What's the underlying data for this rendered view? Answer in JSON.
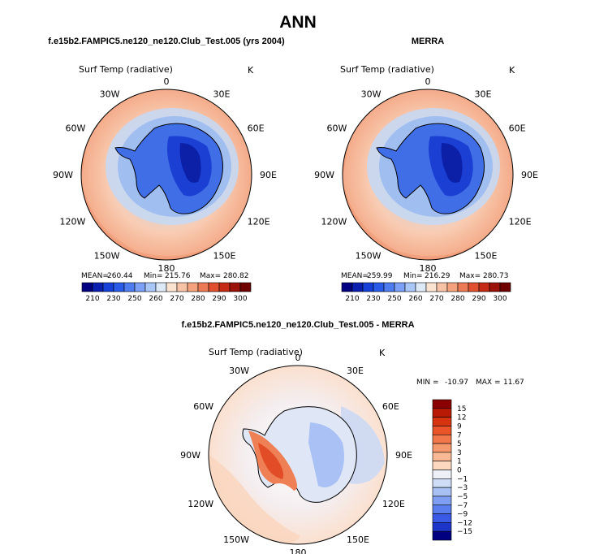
{
  "page_title": "ANN",
  "bottom_title": "f.e15b2.FAMPIC5.ne120_ne120.Club_Test.005 - MERRA",
  "chart_data": [
    {
      "id": "model",
      "type": "heatmap",
      "projection": "south-polar-stereographic",
      "title": "f.e15b2.FAMPIC5.ne120_ne120.Club_Test.005 (yrs 2004)",
      "variable": "Surf Temp (radiative)",
      "units": "K",
      "stats": {
        "mean_label": "MEAN=",
        "mean": "260.44",
        "min_label": "Min=",
        "min": "215.76",
        "max_label": "Max=",
        "max": "280.82"
      },
      "lon_labels": [
        "0",
        "30E",
        "60E",
        "90E",
        "120E",
        "150E",
        "180",
        "150W",
        "120W",
        "90W",
        "60W",
        "30W"
      ],
      "colorbar_levels": [
        "210",
        "230",
        "250",
        "260",
        "270",
        "280",
        "290",
        "300"
      ],
      "colorbar_colors": [
        "#000080",
        "#0a1fb0",
        "#1740d9",
        "#2a5ae8",
        "#4e7cf0",
        "#7ba0f5",
        "#a9c6f8",
        "#dde9f6",
        "#fbe3d2",
        "#f7c2a6",
        "#f3a27d",
        "#ec7a55",
        "#e0502f",
        "#c42a14",
        "#9c120a",
        "#6e0000"
      ]
    },
    {
      "id": "obs",
      "type": "heatmap",
      "projection": "south-polar-stereographic",
      "title": "MERRA",
      "variable": "Surf Temp (radiative)",
      "units": "K",
      "stats": {
        "mean_label": "MEAN=",
        "mean": "259.99",
        "min_label": "Min=",
        "min": "216.29",
        "max_label": "Max=",
        "max": "280.73"
      },
      "lon_labels": [
        "0",
        "30E",
        "60E",
        "90E",
        "120E",
        "150E",
        "180",
        "150W",
        "120W",
        "90W",
        "60W",
        "30W"
      ],
      "colorbar_levels": [
        "210",
        "230",
        "250",
        "260",
        "270",
        "280",
        "290",
        "300"
      ],
      "colorbar_colors": [
        "#000080",
        "#0a1fb0",
        "#1740d9",
        "#2a5ae8",
        "#4e7cf0",
        "#7ba0f5",
        "#a9c6f8",
        "#dde9f6",
        "#fbe3d2",
        "#f7c2a6",
        "#f3a27d",
        "#ec7a55",
        "#e0502f",
        "#c42a14",
        "#9c120a",
        "#6e0000"
      ]
    },
    {
      "id": "diff",
      "type": "heatmap",
      "projection": "south-polar-stereographic",
      "variable": "Surf Temp (radiative)",
      "units": "K",
      "stats": {
        "min_label": "MIN =",
        "min": "-10.97",
        "max_label": "MAX =",
        "max": "11.67"
      },
      "lon_labels": [
        "0",
        "30E",
        "60E",
        "90E",
        "120E",
        "150E",
        "180",
        "150W",
        "120W",
        "90W",
        "60W",
        "30W"
      ],
      "colorbar_levels": [
        "15",
        "12",
        "9",
        "7",
        "5",
        "3",
        "1",
        "0",
        "−1",
        "−3",
        "−5",
        "−7",
        "−9",
        "−12",
        "−15"
      ],
      "colorbar_colors": [
        "#8b0000",
        "#b81a05",
        "#d8330f",
        "#ea5428",
        "#f2774a",
        "#f7996f",
        "#f9b995",
        "#fcd8c0",
        "#eef0f7",
        "#cfdcf5",
        "#a7c1f5",
        "#7f9ff2",
        "#5a7eee",
        "#3a5ae6",
        "#1d36c9",
        "#000080"
      ]
    }
  ]
}
